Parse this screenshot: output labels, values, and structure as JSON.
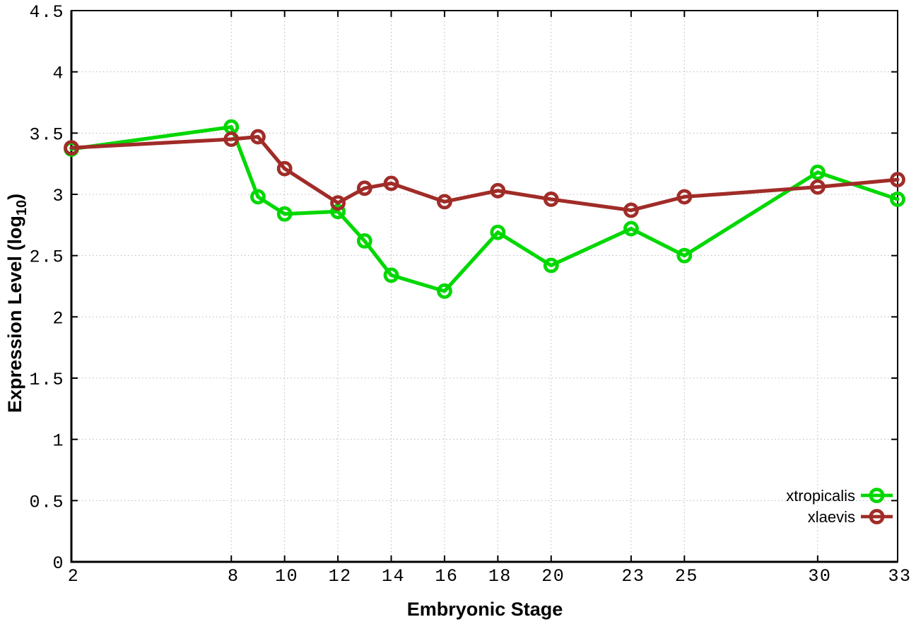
{
  "chart_data": {
    "type": "line",
    "title": "",
    "xlabel": "Embryonic Stage",
    "ylabel": "Expression Level (log10)",
    "ylabel_parts": {
      "main": "Expression Level (log",
      "sub": "10",
      "close": ")"
    },
    "xlim": [
      2,
      33
    ],
    "ylim": [
      0,
      4.5
    ],
    "grid": true,
    "legend_position": "inside-bottom-right",
    "x_ticks": [
      2,
      8,
      10,
      12,
      14,
      16,
      18,
      20,
      23,
      25,
      30,
      33
    ],
    "x_tick_labels": [
      "2",
      "8",
      "10",
      "12",
      "14",
      "16",
      "18",
      "20",
      "23",
      "25",
      "30",
      "33"
    ],
    "y_ticks": [
      0,
      0.5,
      1,
      1.5,
      2,
      2.5,
      3,
      3.5,
      4,
      4.5
    ],
    "y_tick_labels": [
      "0",
      "0.5",
      "1",
      "1.5",
      "2",
      "2.5",
      "3",
      "3.5",
      "4",
      "4.5"
    ],
    "x": [
      2,
      8,
      9,
      10,
      12,
      13,
      14,
      16,
      18,
      20,
      23,
      25,
      30,
      33
    ],
    "series": [
      {
        "name": "xtropicalis",
        "color": "#00d800",
        "values": [
          3.37,
          3.55,
          2.98,
          2.84,
          2.86,
          2.62,
          2.34,
          2.21,
          2.69,
          2.42,
          2.72,
          2.5,
          3.18,
          2.96
        ]
      },
      {
        "name": "xlaevis",
        "color": "#a02c28",
        "values": [
          3.38,
          3.45,
          3.47,
          3.21,
          2.93,
          3.05,
          3.09,
          2.94,
          3.03,
          2.96,
          2.87,
          2.98,
          3.06,
          3.12
        ]
      }
    ],
    "colors": {
      "grid": "#b8b8b8",
      "axis": "#000000",
      "text": "#000000"
    }
  }
}
